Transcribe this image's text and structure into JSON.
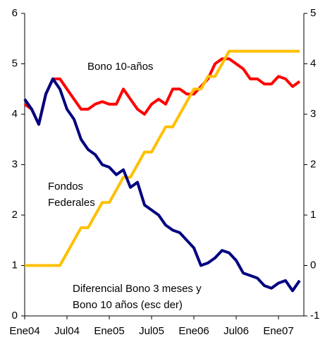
{
  "chart_data": {
    "type": "line",
    "categories": [
      "Ene04",
      null,
      null,
      null,
      null,
      null,
      "Jul04",
      null,
      null,
      null,
      null,
      null,
      "Ene05",
      null,
      null,
      null,
      null,
      null,
      "Jul05",
      null,
      null,
      null,
      null,
      null,
      "Ene06",
      null,
      null,
      null,
      null,
      null,
      "Jul06",
      null,
      null,
      null,
      null,
      null,
      "Ene07",
      null,
      null,
      null
    ],
    "series": [
      {
        "name": "Bono 10-años",
        "color": "#ff0000",
        "values": [
          4.2,
          4.1,
          3.8,
          4.4,
          4.7,
          4.7,
          4.5,
          4.3,
          4.1,
          4.1,
          4.2,
          4.25,
          4.2,
          4.2,
          4.5,
          4.3,
          4.1,
          4.0,
          4.2,
          4.3,
          4.2,
          4.5,
          4.5,
          4.4,
          4.4,
          4.55,
          4.7,
          5.0,
          5.1,
          5.1,
          5.0,
          4.9,
          4.7,
          4.7,
          4.6,
          4.6,
          4.75,
          4.7,
          4.55,
          4.65
        ]
      },
      {
        "name": "Fondos\nFederales",
        "color": "#ffc000",
        "values": [
          1,
          1,
          1,
          1,
          1,
          1,
          1.25,
          1.5,
          1.75,
          1.75,
          2,
          2.25,
          2.25,
          2.5,
          2.75,
          2.75,
          3,
          3.25,
          3.25,
          3.5,
          3.75,
          3.75,
          4,
          4.25,
          4.5,
          4.5,
          4.75,
          4.75,
          5,
          5.25,
          5.25,
          5.25,
          5.25,
          5.25,
          5.25,
          5.25,
          5.25,
          5.25,
          5.25,
          5.25
        ]
      },
      {
        "name": "Diferencial Bono 3 meses y\nBono 10 años (esc der)",
        "color": "#000080",
        "axis": "y2",
        "values": [
          3.3,
          3.1,
          2.8,
          3.4,
          3.7,
          3.5,
          3.1,
          2.9,
          2.5,
          2.3,
          2.2,
          2.0,
          1.95,
          1.8,
          1.9,
          1.55,
          1.65,
          1.2,
          1.1,
          1.0,
          0.8,
          0.7,
          0.65,
          0.5,
          0.35,
          0.0,
          0.05,
          0.15,
          0.3,
          0.25,
          0.1,
          -0.15,
          -0.2,
          -0.25,
          -0.4,
          -0.45,
          -0.35,
          -0.3,
          -0.5,
          -0.3
        ]
      }
    ],
    "ylim": [
      0,
      6
    ],
    "yticks": [
      0,
      1,
      2,
      3,
      4,
      5,
      6
    ],
    "y2lim": [
      -1,
      5
    ],
    "y2ticks": [
      -1,
      0,
      1,
      2,
      3,
      4,
      5
    ]
  }
}
